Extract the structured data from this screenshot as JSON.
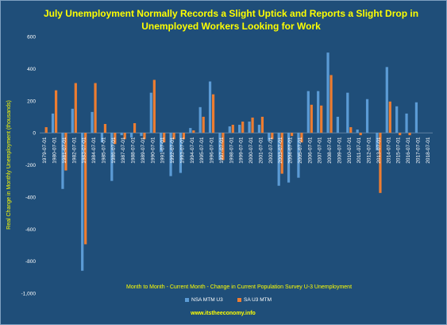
{
  "chart_data": {
    "type": "bar",
    "title": "July Unemployment Normally Records a Slight Uptick and Reports a Slight Drop in Unemployed Workers Looking for Work",
    "subtitle": "Month to Month - Current Month - Change in Current Population Survey U-3 Unemployment",
    "ylabel": "Real Change in Monthly Unemployment (thousands)",
    "xlabel": "",
    "ylim": [
      -1000,
      600
    ],
    "yticks": [
      "600",
      "400",
      "200",
      "0",
      "-200",
      "-400",
      "-600",
      "-800",
      "-1,000"
    ],
    "grid": false,
    "legend_position": "bottom",
    "categories": [
      "1979-07-01",
      "1980-07-01",
      "1981-07-01",
      "1982-07-01",
      "1983-07-01",
      "1984-07-01",
      "1985-07-01",
      "1986-07-01",
      "1987-07-01",
      "1988-07-01",
      "1989-07-01",
      "1990-07-01",
      "1991-07-01",
      "1992-07-01",
      "1993-07-01",
      "1994-07-01",
      "1995-07-01",
      "1996-07-01",
      "1997-07-01",
      "1998-07-01",
      "1999-07-01",
      "2000-07-01",
      "2001-07-01",
      "2002-07-01",
      "2003-07-01",
      "2004-07-01",
      "2005-07-01",
      "2006-07-01",
      "2007-07-01",
      "2008-07-01",
      "2009-07-01",
      "2010-07-01",
      "2011-07-01",
      "2012-07-01",
      "2013-07-01",
      "2014-07-01",
      "2015-07-01",
      "2016-07-01",
      "2017-07-01",
      "2018-07-01"
    ],
    "series": [
      {
        "name": "NSA MTM U3",
        "color": "#5b9bd5",
        "values": [
          0,
          120,
          -350,
          150,
          -860,
          130,
          -60,
          -300,
          -15,
          -30,
          -20,
          250,
          -120,
          -270,
          -250,
          30,
          160,
          320,
          -170,
          40,
          50,
          70,
          50,
          -50,
          -330,
          -310,
          -280,
          260,
          260,
          500,
          100,
          250,
          20,
          210,
          -110,
          410,
          165,
          120,
          190,
          0
        ]
      },
      {
        "name": "SA U3 MTM",
        "color": "#ed7d31",
        "values": [
          35,
          265,
          -235,
          310,
          -695,
          310,
          55,
          -70,
          -40,
          60,
          -40,
          330,
          -60,
          -40,
          -40,
          15,
          100,
          240,
          -170,
          50,
          70,
          95,
          100,
          -40,
          -255,
          -20,
          -60,
          175,
          170,
          360,
          0,
          35,
          -15,
          0,
          -375,
          195,
          -15,
          -15,
          0,
          0
        ]
      }
    ]
  },
  "legend": {
    "nsa": "NSA MTM U3",
    "sa": "SA U3 MTM"
  },
  "footer": "www.itstheeconomy.info"
}
